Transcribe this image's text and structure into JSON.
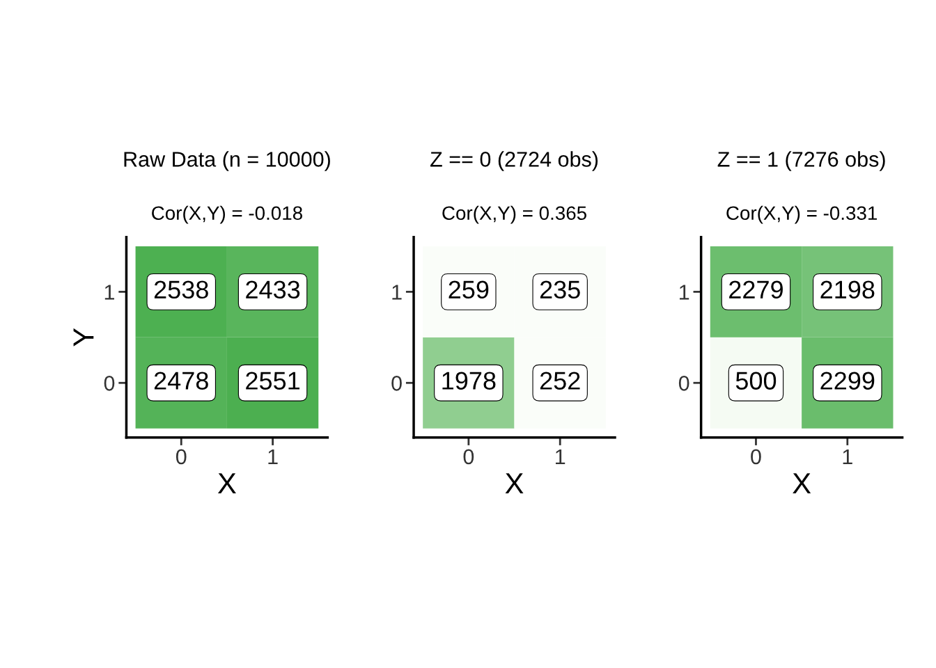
{
  "chart_data": [
    {
      "type": "heatmap",
      "title": "Raw Data (n = 10000)",
      "subtitle": "Cor(X,Y) = -0.018",
      "xlabel": "X",
      "ylabel": "Y",
      "categories": [
        "0",
        "1"
      ],
      "y_categories": [
        "1",
        "0"
      ],
      "cells": [
        [
          2538,
          2433
        ],
        [
          2478,
          2551
        ]
      ],
      "data_labels": true
    },
    {
      "type": "heatmap",
      "title": "Z == 0 (2724 obs)",
      "subtitle": "Cor(X,Y) = 0.365",
      "xlabel": "X",
      "categories": [
        "0",
        "1"
      ],
      "y_categories": [
        "1",
        "0"
      ],
      "cells": [
        [
          259,
          235
        ],
        [
          1978,
          252
        ]
      ],
      "data_labels": true
    },
    {
      "type": "heatmap",
      "title": "Z == 1 (7276 obs)",
      "subtitle": "Cor(X,Y) = -0.331",
      "xlabel": "X",
      "categories": [
        "0",
        "1"
      ],
      "y_categories": [
        "1",
        "0"
      ],
      "cells": [
        [
          2279,
          2198
        ],
        [
          500,
          2299
        ]
      ],
      "data_labels": true
    }
  ]
}
